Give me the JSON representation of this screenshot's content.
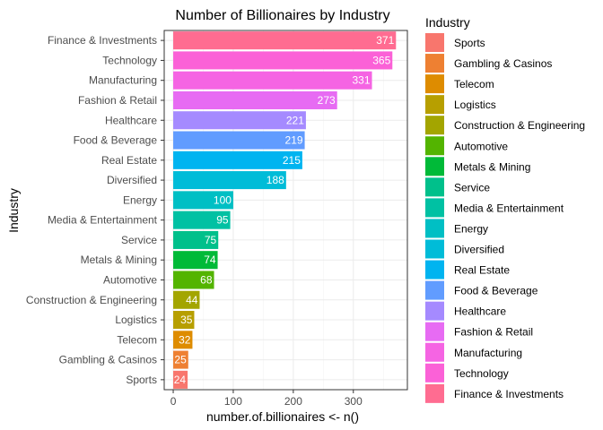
{
  "chart_data": {
    "type": "bar",
    "orientation": "horizontal",
    "title": "Number of Billionaires by Industry",
    "xlabel": "number.of.billionaires <- n()",
    "ylabel": "Industry",
    "xlim": [
      -15,
      390
    ],
    "xticks": [
      0,
      100,
      200,
      300
    ],
    "grid": true,
    "legend_title": "Industry",
    "legend_position": "right",
    "categories": [
      "Finance & Investments",
      "Technology",
      "Manufacturing",
      "Fashion & Retail",
      "Healthcare",
      "Food & Beverage",
      "Real Estate",
      "Diversified",
      "Energy",
      "Media & Entertainment",
      "Service",
      "Metals & Mining",
      "Automotive",
      "Construction & Engineering",
      "Logistics",
      "Telecom",
      "Gambling & Casinos",
      "Sports"
    ],
    "values": [
      371,
      365,
      331,
      273,
      221,
      219,
      215,
      188,
      100,
      95,
      75,
      74,
      68,
      44,
      35,
      32,
      25,
      24
    ],
    "colors": [
      "#FF6C91",
      "#FB61D7",
      "#F564E3",
      "#E76BF3",
      "#A58AFF",
      "#619CFF",
      "#00B4F0",
      "#00BCD8",
      "#00BFC4",
      "#00C1A3",
      "#00C08B",
      "#00BA38",
      "#53B400",
      "#A3A500",
      "#B79F00",
      "#DE8C00",
      "#EE8032",
      "#F8766D"
    ],
    "legend_items": [
      "Sports",
      "Gambling & Casinos",
      "Telecom",
      "Logistics",
      "Construction & Engineering",
      "Automotive",
      "Metals & Mining",
      "Service",
      "Media & Entertainment",
      "Energy",
      "Diversified",
      "Real Estate",
      "Food & Beverage",
      "Healthcare",
      "Fashion & Retail",
      "Manufacturing",
      "Technology",
      "Finance & Investments"
    ]
  }
}
